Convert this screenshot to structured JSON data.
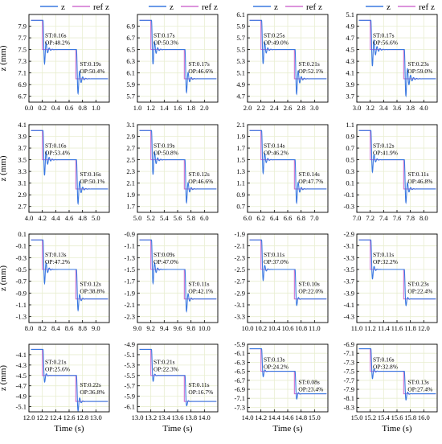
{
  "legend": {
    "z_label": "z",
    "ref_label": "ref z"
  },
  "colors": {
    "z": "#3a78e0",
    "ref": "#d070d0",
    "grid": "#e8eed0",
    "frame": "#000000",
    "bg": "#ffffff"
  },
  "chart_data": [
    {
      "type": "line",
      "ylabel": "z (mm)",
      "xlabel": "",
      "xlim": [
        0,
        1.2
      ],
      "ylim": [
        6.6,
        8.1
      ],
      "xticks": [
        "0.0",
        "0.2",
        "0.4",
        "0.6",
        "0.8",
        "1.0"
      ],
      "yticks": [
        "6.7",
        "6.9",
        "7.1",
        "7.3",
        "7.5",
        "7.7",
        "7.9"
      ],
      "steps": [
        8.0,
        7.5,
        7.0
      ],
      "step_times": [
        0.2,
        0.7
      ],
      "series": [
        {
          "name": "z"
        },
        {
          "name": "ref z"
        }
      ],
      "annotations": [
        {
          "x": 0.24,
          "y": 7.71,
          "lines": [
            "ST:0.16s",
            "OP:48.2%"
          ]
        },
        {
          "x": 0.76,
          "y": 7.22,
          "lines": [
            "ST:0.19s",
            "OP:50.4%"
          ]
        }
      ]
    },
    {
      "type": "line",
      "ylabel": "",
      "xlabel": "",
      "xlim": [
        1.0,
        2.2
      ],
      "ylim": [
        5.6,
        7.1
      ],
      "xticks": [
        "1.0",
        "1.2",
        "1.4",
        "1.6",
        "1.8",
        "2.0"
      ],
      "yticks": [
        "5.7",
        "5.9",
        "6.1",
        "6.3",
        "6.5",
        "6.7",
        "6.9"
      ],
      "steps": [
        7.0,
        6.5,
        6.0
      ],
      "step_times": [
        1.2,
        1.7
      ],
      "series": [
        {
          "name": "z"
        },
        {
          "name": "ref z"
        }
      ],
      "annotations": [
        {
          "x": 1.24,
          "y": 6.71,
          "lines": [
            "ST:0.17s",
            "OP:50.3%"
          ]
        },
        {
          "x": 1.76,
          "y": 6.22,
          "lines": [
            "ST:0.17s",
            "OP:46.6%"
          ]
        }
      ]
    },
    {
      "type": "line",
      "ylabel": "",
      "xlabel": "",
      "xlim": [
        2.0,
        3.2
      ],
      "ylim": [
        4.6,
        6.1
      ],
      "xticks": [
        "2.0",
        "2.2",
        "2.4",
        "2.6",
        "2.8",
        "3.0"
      ],
      "yticks": [
        "4.7",
        "4.9",
        "5.1",
        "5.3",
        "5.5",
        "5.7",
        "5.9",
        "6.1"
      ],
      "steps": [
        6.0,
        5.5,
        5.0
      ],
      "step_times": [
        2.2,
        2.7
      ],
      "series": [
        {
          "name": "z"
        },
        {
          "name": "ref z"
        }
      ],
      "annotations": [
        {
          "x": 2.24,
          "y": 5.71,
          "lines": [
            "ST:0.25s",
            "OP:49.0%"
          ]
        },
        {
          "x": 2.76,
          "y": 5.22,
          "lines": [
            "ST:0.21s",
            "OP:52.1%"
          ]
        }
      ]
    },
    {
      "type": "line",
      "ylabel": "",
      "xlabel": "",
      "xlim": [
        3.0,
        4.2
      ],
      "ylim": [
        3.6,
        5.1
      ],
      "xticks": [
        "3.0",
        "3.2",
        "3.4",
        "3.6",
        "3.8",
        "4.0"
      ],
      "yticks": [
        "3.7",
        "3.9",
        "4.1",
        "4.3",
        "4.5",
        "4.7",
        "4.9",
        "5.1"
      ],
      "steps": [
        5.0,
        4.5,
        4.0
      ],
      "step_times": [
        3.2,
        3.7
      ],
      "series": [
        {
          "name": "z"
        },
        {
          "name": "ref z"
        }
      ],
      "annotations": [
        {
          "x": 3.24,
          "y": 4.71,
          "lines": [
            "ST:0.17s",
            "OP:56.6%"
          ]
        },
        {
          "x": 3.76,
          "y": 4.22,
          "lines": [
            "ST:0.23s",
            "OP:59.0%"
          ]
        }
      ]
    },
    {
      "type": "line",
      "ylabel": "z (mm)",
      "xlabel": "",
      "xlim": [
        4.0,
        5.2
      ],
      "ylim": [
        2.6,
        4.1
      ],
      "xticks": [
        "4.0",
        "4.2",
        "4.4",
        "4.6",
        "4.8",
        "5.0"
      ],
      "yticks": [
        "2.7",
        "2.9",
        "3.1",
        "3.3",
        "3.5",
        "3.7",
        "3.9",
        "4.1"
      ],
      "steps": [
        4.0,
        3.5,
        3.0
      ],
      "step_times": [
        4.2,
        4.7
      ],
      "series": [
        {
          "name": "z"
        },
        {
          "name": "ref z"
        }
      ],
      "annotations": [
        {
          "x": 4.24,
          "y": 3.71,
          "lines": [
            "ST:0.16s",
            "OP:53.4%"
          ]
        },
        {
          "x": 4.76,
          "y": 3.22,
          "lines": [
            "ST:0.16s",
            "OP:50.1%"
          ]
        }
      ]
    },
    {
      "type": "line",
      "ylabel": "",
      "xlabel": "",
      "xlim": [
        5.0,
        6.2
      ],
      "ylim": [
        1.6,
        3.1
      ],
      "xticks": [
        "5.0",
        "5.2",
        "5.4",
        "5.6",
        "5.8",
        "6.0"
      ],
      "yticks": [
        "1.7",
        "1.9",
        "2.1",
        "2.3",
        "2.5",
        "2.7",
        "2.9",
        "3.1"
      ],
      "steps": [
        3.0,
        2.5,
        2.0
      ],
      "step_times": [
        5.2,
        5.7
      ],
      "series": [
        {
          "name": "z"
        },
        {
          "name": "ref z"
        }
      ],
      "annotations": [
        {
          "x": 5.24,
          "y": 2.71,
          "lines": [
            "ST:0.19s",
            "OP:50.8%"
          ]
        },
        {
          "x": 5.76,
          "y": 2.22,
          "lines": [
            "ST:0.12s",
            "OP:46.6%"
          ]
        }
      ]
    },
    {
      "type": "line",
      "ylabel": "",
      "xlabel": "",
      "xlim": [
        6.0,
        7.2
      ],
      "ylim": [
        0.6,
        2.1
      ],
      "xticks": [
        "6.0",
        "6.2",
        "6.4",
        "6.6",
        "6.8",
        "7.0"
      ],
      "yticks": [
        "0.7",
        "0.9",
        "1.1",
        "1.3",
        "1.5",
        "1.7",
        "1.9",
        "2.1"
      ],
      "steps": [
        2.0,
        1.5,
        1.0
      ],
      "step_times": [
        6.2,
        6.7
      ],
      "series": [
        {
          "name": "z"
        },
        {
          "name": "ref z"
        }
      ],
      "annotations": [
        {
          "x": 6.24,
          "y": 1.71,
          "lines": [
            "ST:0.14s",
            "OP:46.2%"
          ]
        },
        {
          "x": 6.76,
          "y": 1.22,
          "lines": [
            "ST:0.14s",
            "OP:47.7%"
          ]
        }
      ]
    },
    {
      "type": "line",
      "ylabel": "",
      "xlabel": "",
      "xlim": [
        7.0,
        8.2
      ],
      "ylim": [
        -0.4,
        1.1
      ],
      "xticks": [
        "7.0",
        "7.2",
        "7.4",
        "7.6",
        "7.8",
        "8.0"
      ],
      "yticks": [
        "-0.3",
        "-0.1",
        "0.1",
        "0.3",
        "0.5",
        "0.7",
        "0.9",
        "1.1"
      ],
      "steps": [
        1.0,
        0.5,
        0.0
      ],
      "step_times": [
        7.2,
        7.7
      ],
      "series": [
        {
          "name": "z"
        },
        {
          "name": "ref z"
        }
      ],
      "annotations": [
        {
          "x": 7.24,
          "y": 0.71,
          "lines": [
            "ST:0.12s",
            "OP:41.9%"
          ]
        },
        {
          "x": 7.76,
          "y": 0.22,
          "lines": [
            "ST:0.11s",
            "OP:46.8%"
          ]
        }
      ]
    },
    {
      "type": "line",
      "ylabel": "z (mm)",
      "xlabel": "",
      "xlim": [
        8.0,
        9.2
      ],
      "ylim": [
        -1.4,
        0.1
      ],
      "xticks": [
        "8.0",
        "8.2",
        "8.4",
        "8.6",
        "8.8",
        "9.0"
      ],
      "yticks": [
        "-1.3",
        "-1.1",
        "-0.9",
        "-0.7",
        "-0.5",
        "-0.3",
        "-0.1",
        "0.1"
      ],
      "steps": [
        0.0,
        -0.5,
        -1.0
      ],
      "step_times": [
        8.2,
        8.7
      ],
      "series": [
        {
          "name": "z"
        },
        {
          "name": "ref z"
        }
      ],
      "annotations": [
        {
          "x": 8.24,
          "y": -0.28,
          "lines": [
            "ST:0.13s",
            "OP:47.2%"
          ]
        },
        {
          "x": 8.76,
          "y": -0.78,
          "lines": [
            "ST:0.12s",
            "OP:38.8%"
          ]
        }
      ]
    },
    {
      "type": "line",
      "ylabel": "",
      "xlabel": "",
      "xlim": [
        9.0,
        10.2
      ],
      "ylim": [
        -2.4,
        -0.9
      ],
      "xticks": [
        "9.0",
        "9.2",
        "9.4",
        "9.6",
        "9.8",
        "10.0"
      ],
      "yticks": [
        "-2.3",
        "-2.1",
        "-1.9",
        "-1.7",
        "-1.5",
        "-1.3",
        "-1.1",
        "-0.9"
      ],
      "steps": [
        -1.0,
        -1.5,
        -2.0
      ],
      "step_times": [
        9.2,
        9.7
      ],
      "series": [
        {
          "name": "z"
        },
        {
          "name": "ref z"
        }
      ],
      "annotations": [
        {
          "x": 9.24,
          "y": -1.28,
          "lines": [
            "ST:0.09s",
            "OP:47.0%"
          ]
        },
        {
          "x": 9.76,
          "y": -1.78,
          "lines": [
            "ST:0.11s",
            "OP:42.1%"
          ]
        }
      ]
    },
    {
      "type": "line",
      "ylabel": "",
      "xlabel": "",
      "xlim": [
        10.0,
        11.2
      ],
      "ylim": [
        -3.4,
        -1.9
      ],
      "xticks": [
        "10.0",
        "10.2",
        "10.4",
        "10.6",
        "10.8",
        "11.0"
      ],
      "yticks": [
        "-3.3",
        "-3.1",
        "-2.9",
        "-2.7",
        "-2.5",
        "-2.3",
        "-2.1",
        "-1.9"
      ],
      "steps": [
        -2.0,
        -2.5,
        -3.0
      ],
      "step_times": [
        10.2,
        10.7
      ],
      "series": [
        {
          "name": "z"
        },
        {
          "name": "ref z"
        }
      ],
      "annotations": [
        {
          "x": 10.24,
          "y": -2.28,
          "lines": [
            "ST:0.11s",
            "OP:37.0%"
          ]
        },
        {
          "x": 10.76,
          "y": -2.78,
          "lines": [
            "ST:0.10s",
            "OP:22.0%"
          ]
        }
      ]
    },
    {
      "type": "line",
      "ylabel": "",
      "xlabel": "",
      "xlim": [
        11.0,
        12.2
      ],
      "ylim": [
        -4.4,
        -2.9
      ],
      "xticks": [
        "11.0",
        "11.2",
        "11.4",
        "11.6",
        "11.8",
        "12.0"
      ],
      "yticks": [
        "-4.3",
        "-4.1",
        "-3.9",
        "-3.7",
        "-3.5",
        "-3.3",
        "-3.1",
        "-2.9"
      ],
      "steps": [
        -3.0,
        -3.5,
        -4.0
      ],
      "step_times": [
        11.2,
        11.7
      ],
      "series": [
        {
          "name": "z"
        },
        {
          "name": "ref z"
        }
      ],
      "annotations": [
        {
          "x": 11.24,
          "y": -3.28,
          "lines": [
            "ST:0.11s",
            "OP:32.2%"
          ]
        },
        {
          "x": 11.76,
          "y": -3.78,
          "lines": [
            "ST:0.23s",
            "OP:22.4%"
          ]
        }
      ]
    },
    {
      "type": "line",
      "ylabel": "z (mm)",
      "xlabel": "Time (s)",
      "xlim": [
        12.0,
        13.2
      ],
      "ylim": [
        -5.2,
        -3.9
      ],
      "xticks": [
        "12.0",
        "12.2",
        "12.4",
        "12.6",
        "12.8",
        "13.0"
      ],
      "yticks": [
        "-5.1",
        "-4.9",
        "-4.7",
        "-4.5",
        "-4.3",
        "-4.1"
      ],
      "steps": [
        -4.0,
        -4.5,
        -5.0
      ],
      "step_times": [
        12.2,
        12.7
      ],
      "series": [
        {
          "name": "z"
        },
        {
          "name": "ref z"
        }
      ],
      "annotations": [
        {
          "x": 12.24,
          "y": -4.28,
          "lines": [
            "ST:0.21s",
            "OP:25.6%"
          ]
        },
        {
          "x": 12.76,
          "y": -4.72,
          "lines": [
            "ST:0.22s",
            "OP:36.8%"
          ]
        }
      ]
    },
    {
      "type": "line",
      "ylabel": "",
      "xlabel": "Time (s)",
      "xlim": [
        13.0,
        14.2
      ],
      "ylim": [
        -6.2,
        -4.9
      ],
      "xticks": [
        "13.0",
        "13.2",
        "13.4",
        "13.6",
        "13.8",
        "14.0"
      ],
      "yticks": [
        "-6.1",
        "-5.9",
        "-5.7",
        "-5.5",
        "-5.3",
        "-5.1",
        "-4.9"
      ],
      "steps": [
        -5.0,
        -5.5,
        -6.0
      ],
      "step_times": [
        13.2,
        13.7
      ],
      "series": [
        {
          "name": "z"
        },
        {
          "name": "ref z"
        }
      ],
      "annotations": [
        {
          "x": 13.24,
          "y": -5.28,
          "lines": [
            "ST:0.21s",
            "OP:22.3%"
          ]
        },
        {
          "x": 13.76,
          "y": -5.72,
          "lines": [
            "ST:0.11s",
            "OP:16.7%"
          ]
        }
      ]
    },
    {
      "type": "line",
      "ylabel": "",
      "xlabel": "Time (s)",
      "xlim": [
        14.0,
        15.2
      ],
      "ylim": [
        -7.4,
        -5.9
      ],
      "xticks": [
        "14.0",
        "14.2",
        "14.4",
        "14.6",
        "14.8",
        "15.0"
      ],
      "yticks": [
        "-7.3",
        "-7.1",
        "-6.9",
        "-6.7",
        "-6.5",
        "-6.3",
        "-6.1",
        "-5.9"
      ],
      "steps": [
        -6.0,
        -6.5,
        -7.0
      ],
      "step_times": [
        14.2,
        14.7
      ],
      "series": [
        {
          "name": "z"
        },
        {
          "name": "ref z"
        }
      ],
      "annotations": [
        {
          "x": 14.24,
          "y": -6.28,
          "lines": [
            "ST:0.13s",
            "OP:24.2%"
          ]
        },
        {
          "x": 14.76,
          "y": -6.78,
          "lines": [
            "ST:0.08s",
            "OP:23.4%"
          ]
        }
      ]
    },
    {
      "type": "line",
      "ylabel": "",
      "xlabel": "Time (s)",
      "xlim": [
        15.0,
        16.2
      ],
      "ylim": [
        -8.4,
        -6.9
      ],
      "xticks": [
        "15.0",
        "15.2",
        "15.4",
        "15.6",
        "15.8",
        "16.0"
      ],
      "yticks": [
        "-8.3",
        "-8.1",
        "-7.9",
        "-7.7",
        "-7.5",
        "-7.3",
        "-7.1",
        "-6.9"
      ],
      "steps": [
        -7.0,
        -7.5,
        -8.0
      ],
      "step_times": [
        15.2,
        15.7
      ],
      "series": [
        {
          "name": "z"
        },
        {
          "name": "ref z"
        }
      ],
      "annotations": [
        {
          "x": 15.24,
          "y": -7.28,
          "lines": [
            "ST:0.16s",
            "OP:32.8%"
          ]
        },
        {
          "x": 15.76,
          "y": -7.78,
          "lines": [
            "ST:0.13s",
            "OP:27.4%"
          ]
        }
      ]
    }
  ]
}
